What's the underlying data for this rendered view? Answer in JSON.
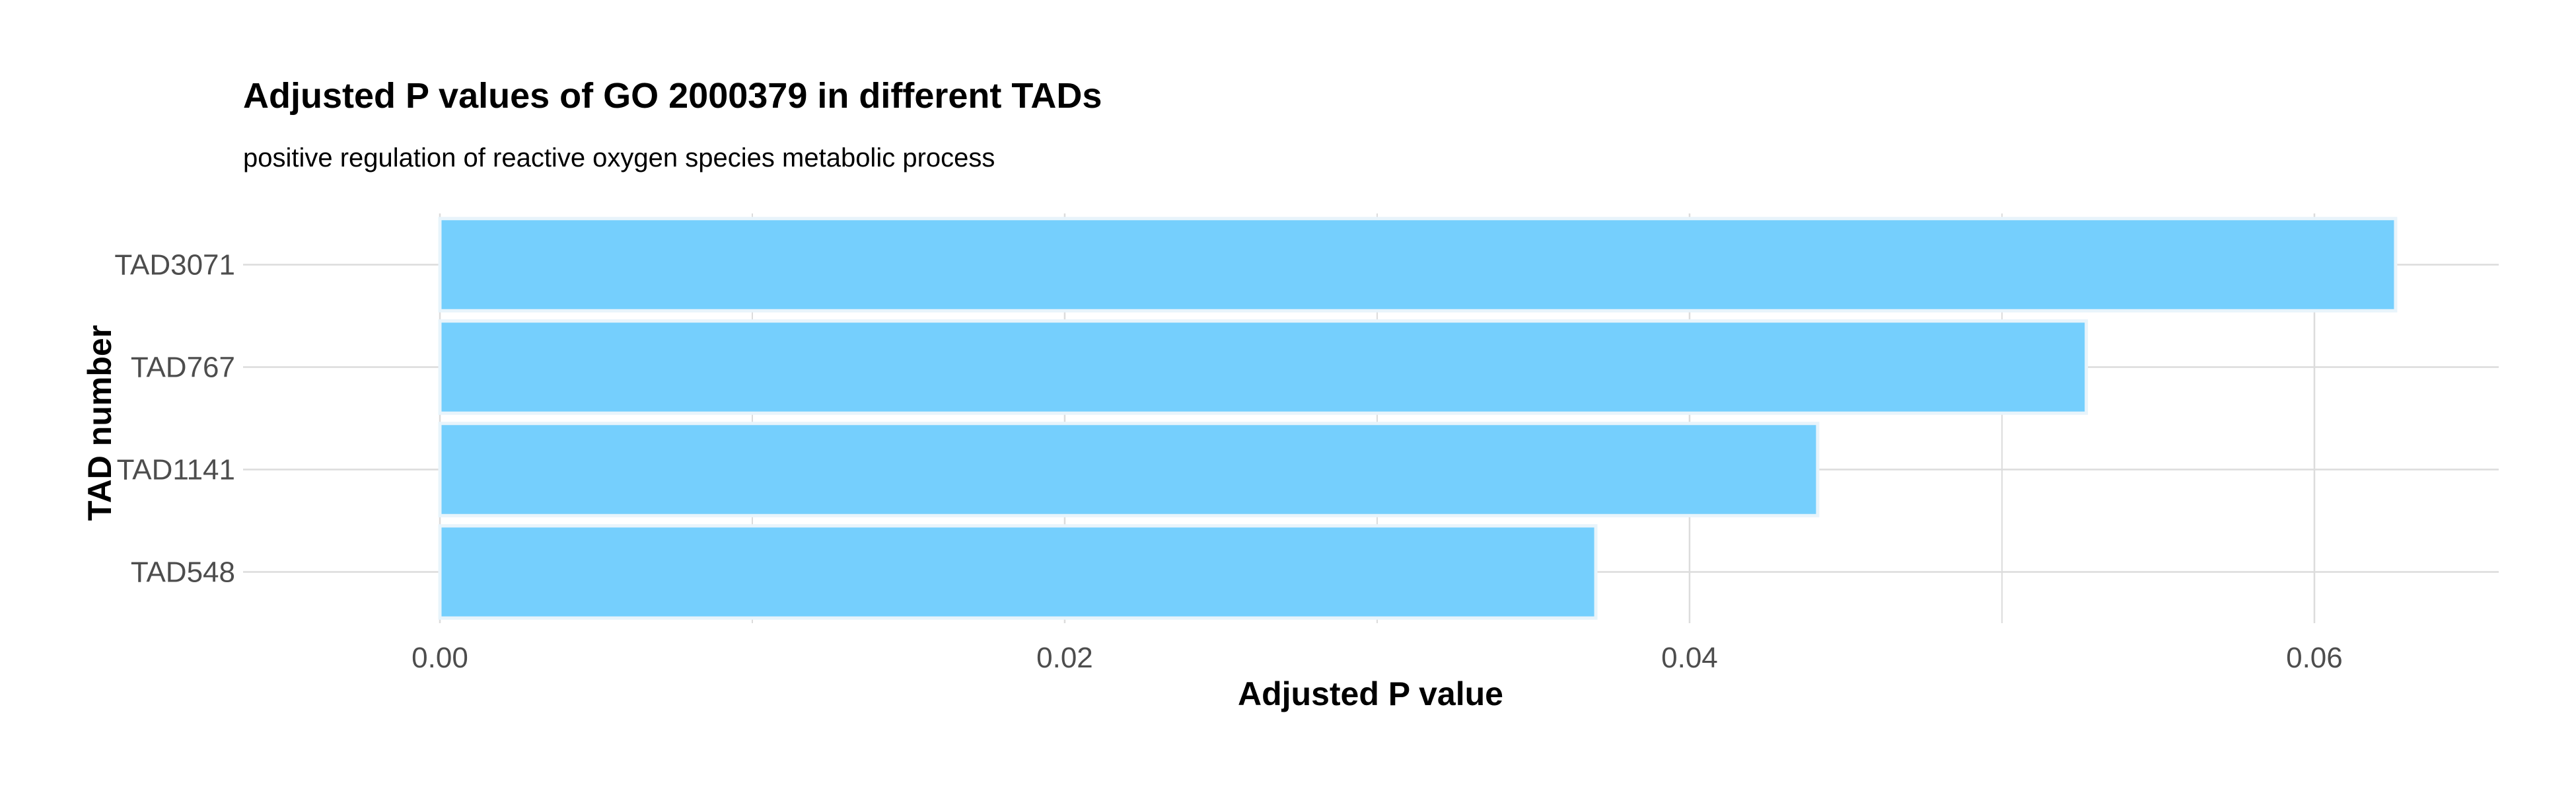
{
  "chart_data": {
    "type": "bar",
    "orientation": "horizontal",
    "title": "Adjusted P values of GO 2000379 in different TADs",
    "subtitle": "positive regulation of reactive oxygen species metabolic process",
    "xlabel": "Adjusted P value",
    "ylabel": "TAD number",
    "categories": [
      "TAD3071",
      "TAD767",
      "TAD1141",
      "TAD548"
    ],
    "values": [
      0.0626,
      0.0527,
      0.0441,
      0.037
    ],
    "xlim": [
      -0.0063,
      0.0659
    ],
    "xticks": [
      0.0,
      0.02,
      0.04,
      0.06
    ],
    "xtick_labels": [
      "0.00",
      "0.02",
      "0.04",
      "0.06"
    ],
    "grid": true,
    "legend": "none",
    "colors": {
      "bar_fill": "#75CFFD",
      "bar_stroke": "#E8F4FB",
      "grid": "#DCDCDC"
    }
  }
}
